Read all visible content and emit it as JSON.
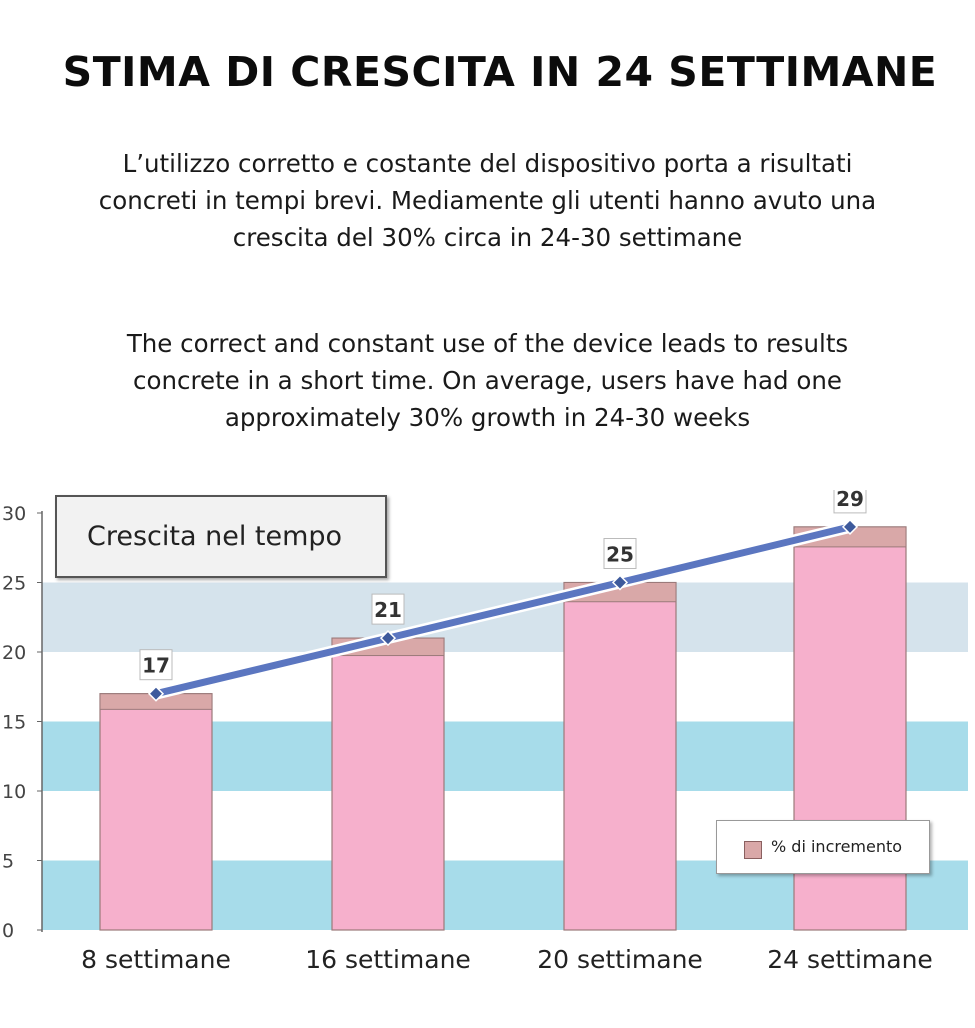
{
  "header": {
    "title": "STIMA DI CRESCITA IN 24 SETTIMANE",
    "italian_lines": [
      "L’utilizzo corretto e costante del dispositivo porta a risultati",
      "concreti in tempi brevi. Mediamente gli utenti hanno avuto una",
      "crescita del 30% circa in 24-30 settimane"
    ],
    "english_lines": [
      "The correct and constant use of the device leads to results",
      "concrete in a short time. On average, users have had one",
      "approximately 30% growth in 24-30 weeks"
    ]
  },
  "chart_box_label": "Crescita nel tempo",
  "colors": {
    "band_blue": "#a7dcea",
    "band_grey": "#d5e3ec",
    "bar_pink": "#f6b0cc",
    "bar_cap": "#d9a8a8",
    "bar_border": "#9b7a7a",
    "line_blue": "#5b76c0",
    "marker": "#3e5a9c"
  },
  "chart_data": {
    "type": "bar",
    "categories": [
      "8 settimane",
      "16 settimane",
      "20 settimane",
      "24 settimane"
    ],
    "values": [
      17,
      21,
      25,
      29
    ],
    "data_labels": [
      "17",
      "21",
      "25",
      "29"
    ],
    "series": [
      {
        "name": "% di incremento",
        "values": [
          17,
          21,
          25,
          29
        ]
      }
    ],
    "overlay_line": {
      "values": [
        17,
        21,
        25,
        29
      ]
    },
    "yticks": [
      "0",
      "5",
      "10",
      "15",
      "20",
      "25",
      "30"
    ],
    "ylim": [
      0,
      30
    ],
    "legend_position": "bottom-right",
    "grid": false
  }
}
